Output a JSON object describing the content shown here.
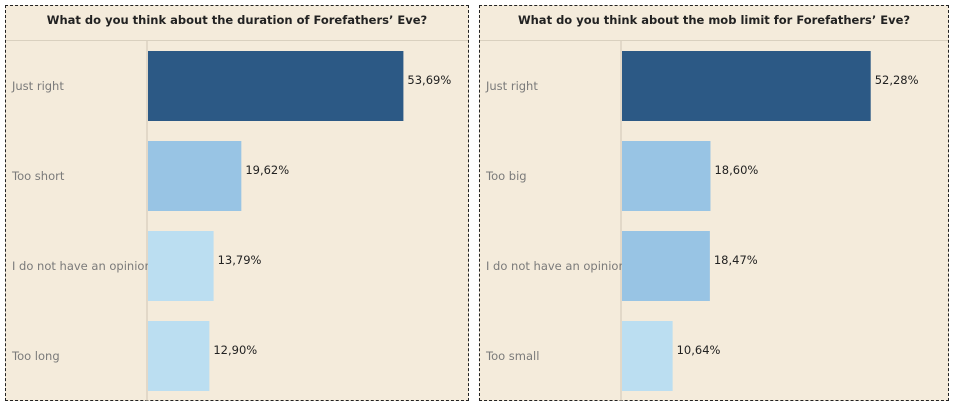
{
  "chart_data": [
    {
      "type": "bar",
      "orientation": "horizontal",
      "title": "What do you think about the duration of Forefathers’ Eve?",
      "categories": [
        "Just right",
        "Too short",
        "I do not have an opinion",
        "Too long"
      ],
      "values": [
        53.69,
        19.62,
        13.79,
        12.9
      ],
      "value_labels": [
        "53,69%",
        "19,62%",
        "13,79%",
        "12,90%"
      ],
      "colors": [
        "#2c5985",
        "#98c4e4",
        "#bbdef1",
        "#bbdef1"
      ],
      "xlim": [
        0,
        70
      ],
      "grid": false
    },
    {
      "type": "bar",
      "orientation": "horizontal",
      "title": "What do you think about the mob limit for Forefathers’ Eve?",
      "categories": [
        "Just right",
        "Too big",
        "I do not have an opinion",
        "Too small"
      ],
      "values": [
        52.28,
        18.6,
        18.47,
        10.64
      ],
      "value_labels": [
        "52,28%",
        "18,60%",
        "18,47%",
        "10,64%"
      ],
      "colors": [
        "#2c5985",
        "#98c4e4",
        "#98c4e4",
        "#bbdef1"
      ],
      "xlim": [
        0,
        70
      ],
      "grid": false
    }
  ]
}
